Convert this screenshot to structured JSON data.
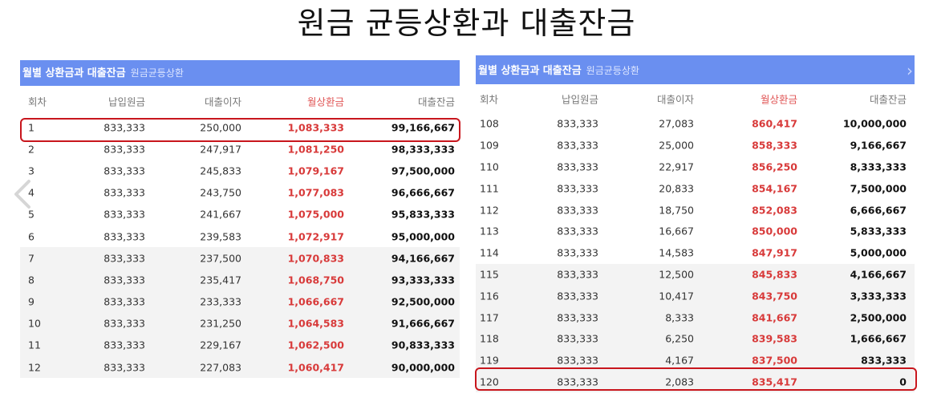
{
  "title": "원금 균등상환과 대출잔금",
  "left_panel": {
    "header": "월별 상환금과 대출잔금",
    "header_sub": "원금균등상환",
    "columns": [
      "회차",
      "납입원금",
      "대출이자",
      "월상환금",
      "대출잔금"
    ],
    "rows": [
      [
        "1",
        "833,333",
        "250,000",
        "1,083,333",
        "99,166,667"
      ],
      [
        "2",
        "833,333",
        "247,917",
        "1,081,250",
        "98,333,333"
      ],
      [
        "3",
        "833,333",
        "245,833",
        "1,079,167",
        "97,500,000"
      ],
      [
        "4",
        "833,333",
        "243,750",
        "1,077,083",
        "96,666,667"
      ],
      [
        "5",
        "833,333",
        "241,667",
        "1,075,000",
        "95,833,333"
      ],
      [
        "6",
        "833,333",
        "239,583",
        "1,072,917",
        "95,000,000"
      ],
      [
        "7",
        "833,333",
        "237,500",
        "1,070,833",
        "94,166,667"
      ],
      [
        "8",
        "833,333",
        "235,417",
        "1,068,750",
        "93,333,333"
      ],
      [
        "9",
        "833,333",
        "233,333",
        "1,066,667",
        "92,500,000"
      ],
      [
        "10",
        "833,333",
        "231,250",
        "1,064,583",
        "91,666,667"
      ],
      [
        "11",
        "833,333",
        "229,167",
        "1,062,500",
        "90,833,333"
      ],
      [
        "12",
        "833,333",
        "227,083",
        "1,060,417",
        "90,000,000"
      ]
    ]
  },
  "right_panel": {
    "header": "월별 상환금과 대출잔금",
    "header_sub": "원금균등상환",
    "columns": [
      "회차",
      "납입원금",
      "대출이자",
      "월상환금",
      "대출잔금"
    ],
    "rows": [
      [
        "108",
        "833,333",
        "27,083",
        "860,417",
        "10,000,000"
      ],
      [
        "109",
        "833,333",
        "25,000",
        "858,333",
        "9,166,667"
      ],
      [
        "110",
        "833,333",
        "22,917",
        "856,250",
        "8,333,333"
      ],
      [
        "111",
        "833,333",
        "20,833",
        "854,167",
        "7,500,000"
      ],
      [
        "112",
        "833,333",
        "18,750",
        "852,083",
        "6,666,667"
      ],
      [
        "113",
        "833,333",
        "16,667",
        "850,000",
        "5,833,333"
      ],
      [
        "114",
        "833,333",
        "14,583",
        "847,917",
        "5,000,000"
      ],
      [
        "115",
        "833,333",
        "12,500",
        "845,833",
        "4,166,667"
      ],
      [
        "116",
        "833,333",
        "10,417",
        "843,750",
        "3,333,333"
      ],
      [
        "117",
        "833,333",
        "8,333",
        "841,667",
        "2,500,000"
      ],
      [
        "118",
        "833,333",
        "6,250",
        "839,583",
        "1,666,667"
      ],
      [
        "119",
        "833,333",
        "4,167",
        "837,500",
        "833,333"
      ],
      [
        "120",
        "833,333",
        "2,083",
        "835,417",
        "0"
      ]
    ]
  },
  "icons": {
    "prev_arrow": "chevron-left-icon",
    "next_arrow": "chevron-right-icon"
  },
  "colors": {
    "header_bar": "#6a8ff0",
    "highlight_border": "#c8161d",
    "monthly_payment_text": "#d83a3a"
  }
}
